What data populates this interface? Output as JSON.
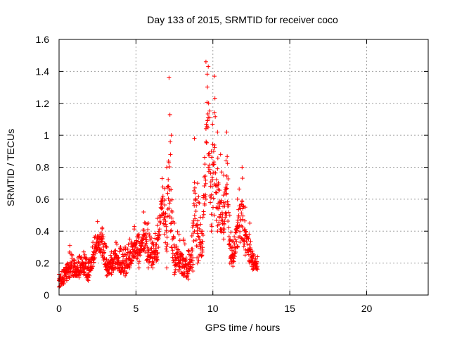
{
  "chart_data": {
    "type": "scatter",
    "title": "Day 133 of 2015, SRMTID for receiver coco",
    "xlabel": "GPS time / hours",
    "ylabel": "SRMTID / TECUs",
    "xlim": [
      0,
      24
    ],
    "ylim": [
      0,
      1.6
    ],
    "x_ticks": [
      "0",
      "5",
      "10",
      "15",
      "20"
    ],
    "x_tick_values": [
      0,
      5,
      10,
      15,
      20
    ],
    "y_ticks": [
      "0",
      "0.2",
      "0.4",
      "0.6",
      "0.8",
      "1",
      "1.2",
      "1.4",
      "1.6"
    ],
    "y_tick_values": [
      0,
      0.2,
      0.4,
      0.6,
      0.8,
      1.0,
      1.2,
      1.4,
      1.6
    ],
    "grid": true,
    "marker": "plus",
    "color": "#ff0000",
    "series": [
      {
        "name": "SRMTID",
        "envelope": [
          [
            0.0,
            0.05,
            0.13
          ],
          [
            0.3,
            0.07,
            0.16
          ],
          [
            0.5,
            0.09,
            0.19
          ],
          [
            0.7,
            0.11,
            0.31
          ],
          [
            1.0,
            0.12,
            0.22
          ],
          [
            1.3,
            0.11,
            0.24
          ],
          [
            1.6,
            0.13,
            0.27
          ],
          [
            1.9,
            0.09,
            0.22
          ],
          [
            2.2,
            0.18,
            0.33
          ],
          [
            2.5,
            0.29,
            0.46
          ],
          [
            2.8,
            0.25,
            0.42
          ],
          [
            3.1,
            0.12,
            0.3
          ],
          [
            3.4,
            0.13,
            0.27
          ],
          [
            3.7,
            0.17,
            0.33
          ],
          [
            4.0,
            0.14,
            0.3
          ],
          [
            4.3,
            0.12,
            0.3
          ],
          [
            4.6,
            0.17,
            0.35
          ],
          [
            4.9,
            0.24,
            0.43
          ],
          [
            5.2,
            0.17,
            0.38
          ],
          [
            5.5,
            0.28,
            0.52
          ],
          [
            5.8,
            0.17,
            0.45
          ],
          [
            6.1,
            0.17,
            0.33
          ],
          [
            6.4,
            0.22,
            0.48
          ],
          [
            6.7,
            0.5,
            0.73
          ],
          [
            7.0,
            0.17,
            0.8
          ],
          [
            7.15,
            0.5,
            1.36
          ],
          [
            7.3,
            0.3,
            1.0
          ],
          [
            7.5,
            0.13,
            0.45
          ],
          [
            7.8,
            0.15,
            0.38
          ],
          [
            8.1,
            0.12,
            0.35
          ],
          [
            8.4,
            0.1,
            0.28
          ],
          [
            8.7,
            0.15,
            0.45
          ],
          [
            8.8,
            0.4,
            0.98
          ],
          [
            9.0,
            0.2,
            0.7
          ],
          [
            9.3,
            0.25,
            0.4
          ],
          [
            9.55,
            0.6,
            1.46
          ],
          [
            9.7,
            0.8,
            1.43
          ],
          [
            9.9,
            0.4,
            0.9
          ],
          [
            10.1,
            0.5,
            1.37
          ],
          [
            10.3,
            0.4,
            1.02
          ],
          [
            10.5,
            0.4,
            0.88
          ],
          [
            10.7,
            0.35,
            0.75
          ],
          [
            10.9,
            0.5,
            1.02
          ],
          [
            11.1,
            0.2,
            0.5
          ],
          [
            11.3,
            0.18,
            0.3
          ],
          [
            11.6,
            0.3,
            0.6
          ],
          [
            11.9,
            0.35,
            0.8
          ],
          [
            12.1,
            0.25,
            0.55
          ],
          [
            12.4,
            0.2,
            0.45
          ],
          [
            12.6,
            0.16,
            0.26
          ],
          [
            12.9,
            0.16,
            0.24
          ]
        ]
      }
    ]
  }
}
